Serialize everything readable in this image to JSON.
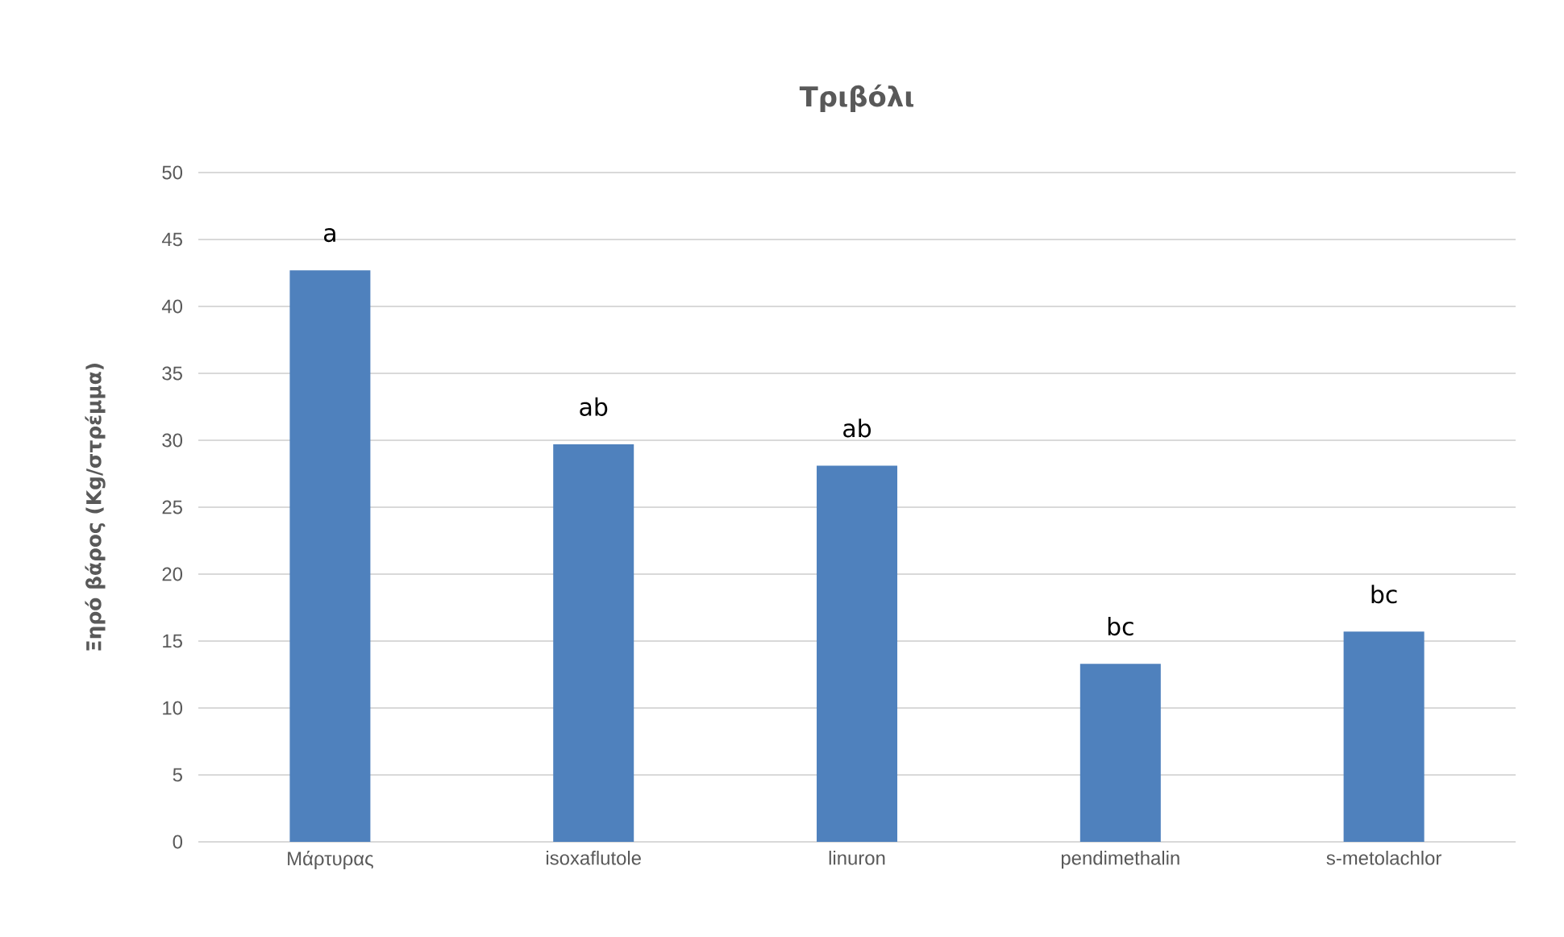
{
  "chart_data": {
    "type": "bar",
    "title": "Τριβόλι",
    "ylabel": "Ξηρό βάρος (Kg/στρέμμα)",
    "categories": [
      "Μάρτυρας",
      "isoxaflutole",
      "linuron",
      "pendimethalin",
      "s-metolachlor"
    ],
    "values": [
      42.7,
      29.7,
      28.1,
      13.3,
      15.7
    ],
    "color": "#4f81bd",
    "ylim": [
      0,
      50
    ],
    "yticks": [
      0,
      5,
      10,
      15,
      20,
      25,
      30,
      35,
      40,
      45,
      50
    ],
    "grid": "y",
    "annotations": [
      "a",
      "ab",
      "ab",
      "bc",
      "bc"
    ]
  }
}
